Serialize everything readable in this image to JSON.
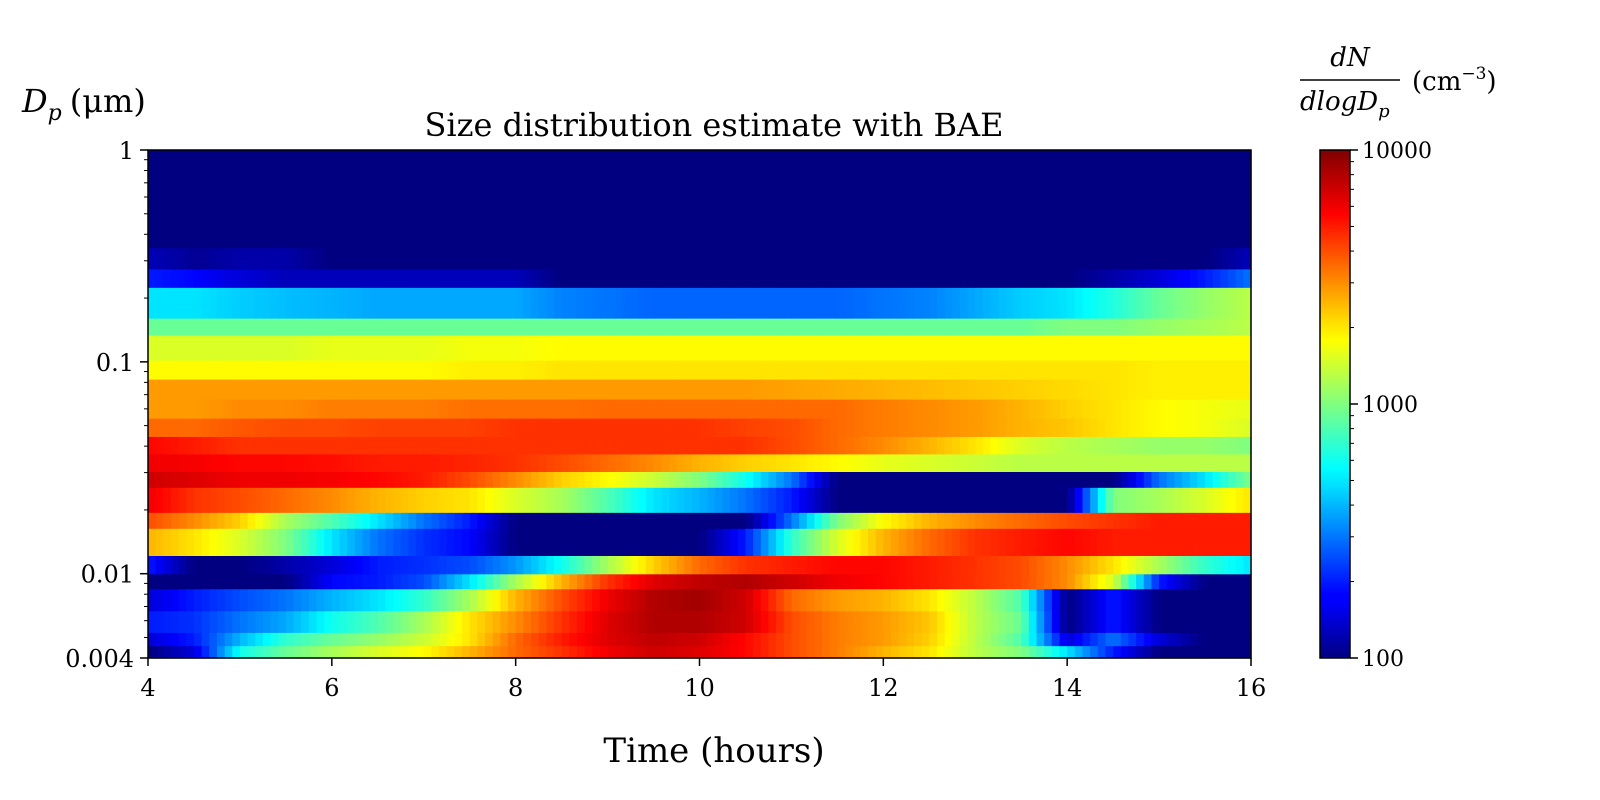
{
  "chart_data": {
    "type": "heatmap",
    "title": "Size distribution estimate with BAE",
    "xlabel": "Time (hours)",
    "ylabel": {
      "symbol": "D",
      "subscript": "p",
      "unit": "(μm)"
    },
    "colorbar_label": {
      "numerator": "dN",
      "denominator": "dlogD",
      "denominator_sub": "p",
      "unit": "(cm",
      "unit_exp": "−3",
      "unit_close": ")"
    },
    "xlim": [
      4,
      16
    ],
    "ylim": [
      0.004,
      1
    ],
    "y_scale": "log",
    "x_ticks": [
      "4",
      "6",
      "8",
      "10",
      "12",
      "14",
      "16"
    ],
    "y_ticks": [
      "1",
      "0.1",
      "0.01",
      "0.004"
    ],
    "colorbar": {
      "min": 100,
      "max": 10000,
      "scale": "log",
      "colormap": "jet",
      "ticks": [
        "10000",
        "1000",
        "100"
      ]
    },
    "grid": false,
    "times": [
      4,
      4.5,
      5,
      5.5,
      6,
      6.5,
      7,
      7.5,
      8,
      8.5,
      9,
      9.5,
      10,
      10.5,
      11,
      11.5,
      12,
      12.5,
      13,
      13.5,
      14,
      14.5,
      15,
      15.5,
      16
    ],
    "bin_edges": [
      0.004,
      0.00458,
      0.00529,
      0.00669,
      0.0085,
      0.01,
      0.0122,
      0.0164,
      0.0195,
      0.0256,
      0.0304,
      0.0368,
      0.0445,
      0.0543,
      0.0668,
      0.083,
      0.102,
      0.134,
      0.161,
      0.225,
      0.275,
      0.346,
      0.476,
      0.612,
      0.802,
      1.0
    ],
    "rows": [
      {
        "dp": 0.0043,
        "values": [
          100,
          150,
          600,
          900,
          1200,
          1500,
          1800,
          2500,
          3500,
          4500,
          6000,
          7000,
          6500,
          5500,
          4000,
          3200,
          2500,
          2000,
          1300,
          1000,
          500,
          200,
          100,
          100,
          100
        ]
      },
      {
        "dp": 0.0049,
        "values": [
          150,
          200,
          400,
          700,
          900,
          1100,
          1400,
          2000,
          3500,
          5000,
          6500,
          7500,
          7000,
          5500,
          4000,
          3200,
          2800,
          2200,
          1300,
          800,
          150,
          300,
          150,
          100,
          100
        ]
      },
      {
        "dp": 0.006,
        "values": [
          200,
          220,
          300,
          380,
          600,
          800,
          1200,
          2000,
          3000,
          4500,
          6500,
          8000,
          8000,
          7000,
          4000,
          3200,
          2800,
          2300,
          1300,
          900,
          100,
          200,
          100,
          100,
          100
        ]
      },
      {
        "dp": 0.0075,
        "values": [
          150,
          200,
          250,
          300,
          400,
          500,
          700,
          1200,
          2500,
          4000,
          6000,
          8000,
          8500,
          7000,
          3500,
          2800,
          2500,
          2000,
          1300,
          800,
          100,
          200,
          100,
          100,
          100
        ]
      },
      {
        "dp": 0.0092,
        "values": [
          100,
          100,
          100,
          100,
          180,
          200,
          250,
          500,
          1200,
          2500,
          4500,
          6500,
          7500,
          8000,
          7000,
          6000,
          5500,
          5000,
          4500,
          4000,
          3000,
          1500,
          200,
          100,
          100
        ]
      },
      {
        "dp": 0.011,
        "values": [
          200,
          100,
          100,
          120,
          150,
          200,
          220,
          250,
          350,
          600,
          1200,
          2200,
          3500,
          4500,
          5000,
          5500,
          5500,
          5000,
          4500,
          4000,
          3000,
          2000,
          1200,
          700,
          500
        ]
      },
      {
        "dp": 0.0142,
        "values": [
          2500,
          2000,
          1500,
          1000,
          500,
          300,
          220,
          180,
          100,
          100,
          100,
          100,
          100,
          200,
          700,
          1500,
          2500,
          3500,
          4500,
          5000,
          5500,
          5000,
          5000,
          5000,
          5000
        ]
      },
      {
        "dp": 0.018,
        "values": [
          4000,
          3000,
          2200,
          1200,
          800,
          500,
          300,
          200,
          100,
          100,
          100,
          100,
          100,
          100,
          300,
          1000,
          1800,
          2500,
          3000,
          3500,
          4000,
          4500,
          5000,
          5000,
          5000
        ]
      },
      {
        "dp": 0.0223,
        "values": [
          6000,
          4500,
          4000,
          3500,
          3000,
          2500,
          2200,
          2000,
          1500,
          1200,
          800,
          500,
          400,
          300,
          200,
          100,
          100,
          100,
          100,
          100,
          100,
          1000,
          1200,
          1500,
          2000
        ]
      },
      {
        "dp": 0.0279,
        "values": [
          7000,
          6500,
          6000,
          6000,
          5800,
          5500,
          5000,
          4000,
          3000,
          2200,
          1800,
          1400,
          1000,
          600,
          300,
          100,
          100,
          100,
          100,
          100,
          100,
          100,
          300,
          500,
          1000
        ]
      },
      {
        "dp": 0.0336,
        "values": [
          6000,
          5800,
          5500,
          5500,
          5300,
          5000,
          5000,
          4800,
          4500,
          4000,
          3500,
          3000,
          2500,
          2200,
          2000,
          1800,
          1600,
          1500,
          1400,
          1300,
          1300,
          1300,
          1300,
          1300,
          1300
        ]
      },
      {
        "dp": 0.0405,
        "values": [
          5500,
          5000,
          4500,
          4500,
          4500,
          4500,
          4500,
          4500,
          4500,
          4500,
          4500,
          4500,
          4500,
          4500,
          4000,
          3500,
          3000,
          2500,
          2000,
          1500,
          1300,
          1200,
          1100,
          1100,
          1000
        ]
      },
      {
        "dp": 0.049,
        "values": [
          3500,
          3500,
          3800,
          4000,
          4000,
          4200,
          4200,
          4200,
          4500,
          4500,
          4500,
          4500,
          4500,
          4200,
          4000,
          3500,
          3200,
          3000,
          2800,
          2500,
          2300,
          2000,
          1800,
          1700,
          1500
        ]
      },
      {
        "dp": 0.06,
        "values": [
          2800,
          2800,
          3000,
          3000,
          3200,
          3200,
          3200,
          3400,
          3400,
          3400,
          3500,
          3500,
          3500,
          3500,
          3500,
          3500,
          3200,
          3000,
          2800,
          2500,
          2200,
          2000,
          1800,
          1700,
          1600
        ]
      },
      {
        "dp": 0.074,
        "values": [
          2800,
          2800,
          2800,
          2800,
          2800,
          2800,
          2800,
          2800,
          2800,
          2800,
          2800,
          2800,
          2800,
          2800,
          2700,
          2600,
          2500,
          2400,
          2300,
          2200,
          2100,
          2000,
          1900,
          1900,
          1900
        ]
      },
      {
        "dp": 0.092,
        "values": [
          1800,
          1800,
          1800,
          1800,
          1800,
          1800,
          1800,
          1900,
          1900,
          2000,
          2000,
          2000,
          2000,
          2000,
          2000,
          2000,
          2000,
          2000,
          2000,
          2000,
          2000,
          2000,
          1900,
          1900,
          1900
        ]
      },
      {
        "dp": 0.12,
        "values": [
          1500,
          1500,
          1500,
          1500,
          1600,
          1600,
          1600,
          1700,
          1700,
          1800,
          1800,
          1800,
          1800,
          1800,
          1800,
          1800,
          1800,
          1800,
          1800,
          1800,
          1800,
          1800,
          1800,
          1800,
          1800
        ]
      },
      {
        "dp": 0.148,
        "values": [
          900,
          900,
          900,
          900,
          900,
          900,
          900,
          900,
          900,
          900,
          900,
          900,
          900,
          900,
          900,
          900,
          900,
          900,
          900,
          900,
          1000,
          1000,
          1100,
          1200,
          1300
        ]
      },
      {
        "dp": 0.19,
        "values": [
          500,
          500,
          450,
          420,
          400,
          380,
          380,
          380,
          380,
          320,
          300,
          280,
          280,
          280,
          280,
          280,
          300,
          320,
          380,
          450,
          500,
          650,
          900,
          1100,
          1300
        ]
      },
      {
        "dp": 0.248,
        "values": [
          200,
          180,
          150,
          130,
          130,
          130,
          130,
          130,
          130,
          100,
          100,
          100,
          100,
          100,
          100,
          100,
          100,
          100,
          100,
          100,
          100,
          120,
          150,
          200,
          300
        ]
      },
      {
        "dp": 0.31,
        "values": [
          130,
          110,
          120,
          120,
          100,
          100,
          100,
          100,
          100,
          100,
          100,
          100,
          100,
          100,
          100,
          100,
          100,
          100,
          100,
          100,
          100,
          100,
          100,
          100,
          130
        ]
      },
      {
        "dp": 0.41,
        "values": [
          100,
          100,
          100,
          100,
          100,
          100,
          100,
          100,
          100,
          100,
          100,
          100,
          100,
          100,
          100,
          100,
          100,
          100,
          100,
          100,
          100,
          100,
          100,
          100,
          100
        ]
      },
      {
        "dp": 0.54,
        "values": [
          100,
          100,
          100,
          100,
          100,
          100,
          100,
          100,
          100,
          100,
          100,
          100,
          100,
          100,
          100,
          100,
          100,
          100,
          100,
          100,
          100,
          100,
          100,
          100,
          100
        ]
      },
      {
        "dp": 0.7,
        "values": [
          100,
          100,
          100,
          100,
          100,
          100,
          100,
          100,
          100,
          100,
          100,
          100,
          100,
          100,
          100,
          100,
          100,
          100,
          100,
          100,
          100,
          100,
          100,
          100,
          100
        ]
      },
      {
        "dp": 0.9,
        "values": [
          100,
          100,
          100,
          100,
          100,
          100,
          100,
          100,
          100,
          100,
          100,
          100,
          100,
          100,
          100,
          100,
          100,
          100,
          100,
          100,
          100,
          100,
          100,
          100,
          100
        ]
      }
    ]
  }
}
